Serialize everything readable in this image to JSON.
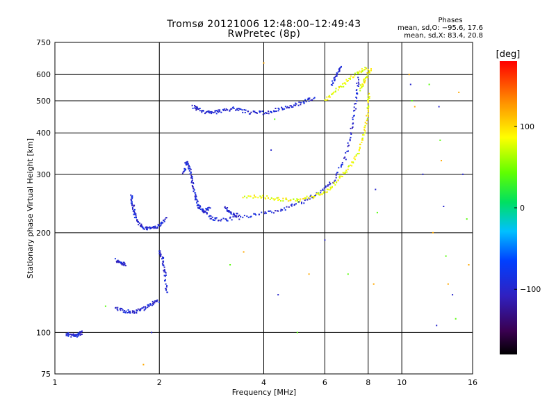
{
  "header": {
    "title_line1": "Tromsø 20121006 12:48:00–12:49:43",
    "title_line2": "RwPretec (8p)",
    "stats_heading": "Phases",
    "stats_o": "mean, sd,O: −95.6, 17.6",
    "stats_x": "mean, sd,X: 83.4, 20.8"
  },
  "colorbar": {
    "unit_label": "[deg]",
    "ticks": [
      "100",
      "0",
      "−100"
    ],
    "tick_values": [
      100,
      0,
      -100
    ],
    "range": [
      -180,
      180
    ]
  },
  "chart_data": {
    "type": "scatter",
    "xlabel": "Frequency [MHz]",
    "ylabel": "Stationary phase Virtual Height [km]",
    "x_scale": "log",
    "y_scale": "log",
    "xlim": [
      1,
      16
    ],
    "ylim": [
      75,
      750
    ],
    "x_ticks": [
      1,
      2,
      4,
      6,
      8,
      10,
      16
    ],
    "x_tick_labels": [
      "1",
      "2",
      "4",
      "6",
      "8",
      "10",
      "16"
    ],
    "y_ticks": [
      75,
      100,
      200,
      300,
      400,
      500,
      600,
      750
    ],
    "y_tick_labels": [
      "75",
      "100",
      "200",
      "300",
      "400",
      "500",
      "600",
      "750"
    ],
    "grid": true,
    "series": [
      {
        "mode": "O",
        "mean_phase": -95.6,
        "sd_phase": 17.6,
        "traces": [
          [
            [
              1.08,
              99
            ],
            [
              1.12,
              98
            ],
            [
              1.16,
              98
            ],
            [
              1.2,
              100
            ]
          ],
          [
            [
              1.5,
              118
            ],
            [
              1.6,
              116
            ],
            [
              1.7,
              115
            ],
            [
              1.8,
              118
            ],
            [
              1.9,
              122
            ],
            [
              2.0,
              125
            ]
          ],
          [
            [
              1.5,
              165
            ],
            [
              1.55,
              162
            ],
            [
              1.6,
              160
            ]
          ],
          [
            [
              1.66,
              260
            ],
            [
              1.68,
              240
            ],
            [
              1.7,
              225
            ],
            [
              1.75,
              212
            ],
            [
              1.82,
              206
            ],
            [
              1.9,
              206
            ],
            [
              2.0,
              210
            ],
            [
              2.1,
              222
            ]
          ],
          [
            [
              2.0,
              175
            ],
            [
              2.05,
              165
            ],
            [
              2.08,
              150
            ],
            [
              2.1,
              130
            ]
          ],
          [
            [
              2.35,
              300
            ],
            [
              2.4,
              330
            ],
            [
              2.45,
              310
            ],
            [
              2.5,
              280
            ],
            [
              2.55,
              255
            ],
            [
              2.6,
              240
            ],
            [
              2.7,
              232
            ],
            [
              2.8,
              236
            ]
          ],
          [
            [
              2.5,
              480
            ],
            [
              2.6,
              470
            ],
            [
              2.8,
              460
            ],
            [
              3.0,
              465
            ],
            [
              3.3,
              475
            ],
            [
              3.6,
              460
            ],
            [
              4.0,
              460
            ],
            [
              4.4,
              470
            ],
            [
              4.8,
              480
            ],
            [
              5.2,
              495
            ],
            [
              5.6,
              512
            ]
          ],
          [
            [
              2.6,
              240
            ],
            [
              2.8,
              222
            ],
            [
              3.0,
              218
            ],
            [
              3.4,
              222
            ],
            [
              4.0,
              228
            ],
            [
              4.6,
              236
            ],
            [
              5.2,
              248
            ],
            [
              5.8,
              265
            ],
            [
              6.4,
              290
            ],
            [
              6.9,
              340
            ],
            [
              7.2,
              420
            ],
            [
              7.4,
              510
            ],
            [
              7.5,
              590
            ]
          ],
          [
            [
              6.3,
              560
            ],
            [
              6.5,
              600
            ],
            [
              6.7,
              640
            ]
          ],
          [
            [
              3.1,
              238
            ],
            [
              3.2,
              230
            ],
            [
              3.4,
              226
            ]
          ]
        ]
      },
      {
        "mode": "X",
        "mean_phase": 83.4,
        "sd_phase": 20.8,
        "traces": [
          [
            [
              3.5,
              258
            ],
            [
              4.0,
              256
            ],
            [
              4.5,
              252
            ],
            [
              5.0,
              250
            ],
            [
              5.5,
              256
            ],
            [
              6.0,
              265
            ],
            [
              6.5,
              285
            ],
            [
              7.0,
              310
            ],
            [
              7.5,
              350
            ],
            [
              7.8,
              400
            ],
            [
              8.0,
              470
            ],
            [
              8.05,
              530
            ]
          ],
          [
            [
              6.0,
              500
            ],
            [
              6.5,
              540
            ],
            [
              7.0,
              575
            ],
            [
              7.5,
              610
            ],
            [
              8.0,
              630
            ]
          ],
          [
            [
              7.6,
              540
            ],
            [
              7.8,
              580
            ],
            [
              8.2,
              620
            ]
          ]
        ]
      }
    ],
    "scattered_points": [
      [
        4.0,
        650
      ],
      [
        4.4,
        130
      ],
      [
        5.0,
        100
      ],
      [
        5.4,
        150
      ],
      [
        6.0,
        190
      ],
      [
        7.0,
        150
      ],
      [
        8.3,
        140
      ],
      [
        8.4,
        270
      ],
      [
        8.5,
        230
      ],
      [
        10.5,
        600
      ],
      [
        10.6,
        560
      ],
      [
        10.7,
        500
      ],
      [
        10.9,
        480
      ],
      [
        11.5,
        300
      ],
      [
        12.0,
        560
      ],
      [
        12.3,
        200
      ],
      [
        12.8,
        480
      ],
      [
        12.9,
        380
      ],
      [
        13.0,
        330
      ],
      [
        13.2,
        240
      ],
      [
        13.4,
        170
      ],
      [
        13.6,
        140
      ],
      [
        14.0,
        130
      ],
      [
        14.3,
        110
      ],
      [
        14.6,
        530
      ],
      [
        15.0,
        300
      ],
      [
        15.4,
        220
      ],
      [
        15.6,
        160
      ],
      [
        12.6,
        105
      ],
      [
        1.4,
        120
      ],
      [
        1.8,
        80
      ],
      [
        1.9,
        100
      ],
      [
        3.2,
        160
      ],
      [
        3.5,
        175
      ],
      [
        4.2,
        355
      ],
      [
        4.3,
        440
      ]
    ]
  }
}
